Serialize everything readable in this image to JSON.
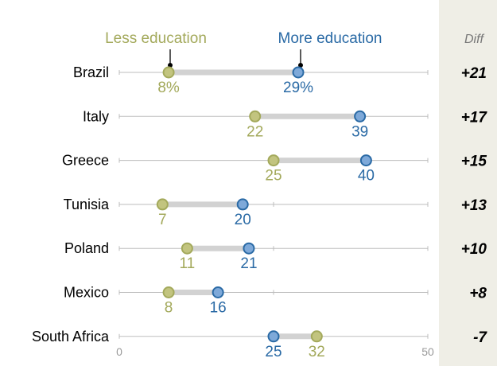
{
  "chart_data": {
    "type": "dot-plot",
    "xlim": [
      0,
      50
    ],
    "x_ticks": [
      {
        "value": 0,
        "label": "0"
      },
      {
        "value": 50,
        "label": "50"
      }
    ],
    "legend": {
      "less": "Less education",
      "more": "More education"
    },
    "diff_header": "Diff",
    "colors": {
      "less": "#a3a95b",
      "less_fill": "#c2c47f",
      "more": "#2a6aa5",
      "more_fill": "#7ea9d9",
      "bar": "#d2d2d2",
      "axis": "#bdbdbd",
      "diff_panel": "#efeee6"
    },
    "rows": [
      {
        "country": "Brazil",
        "less": 8,
        "more": 29,
        "less_label": "8%",
        "more_label": "29%",
        "diff": "+21"
      },
      {
        "country": "Italy",
        "less": 22,
        "more": 39,
        "less_label": "22",
        "more_label": "39",
        "diff": "+17"
      },
      {
        "country": "Greece",
        "less": 25,
        "more": 40,
        "less_label": "25",
        "more_label": "40",
        "diff": "+15"
      },
      {
        "country": "Tunisia",
        "less": 7,
        "more": 20,
        "less_label": "7",
        "more_label": "20",
        "diff": "+13"
      },
      {
        "country": "Poland",
        "less": 11,
        "more": 21,
        "less_label": "11",
        "more_label": "21",
        "diff": "+10"
      },
      {
        "country": "Mexico",
        "less": 8,
        "more": 16,
        "less_label": "8",
        "more_label": "16",
        "diff": "+8"
      },
      {
        "country": "South Africa",
        "less": 32,
        "more": 25,
        "less_label": "32",
        "more_label": "25",
        "diff": "-7"
      }
    ]
  }
}
